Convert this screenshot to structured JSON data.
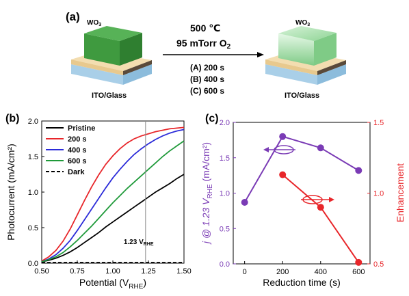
{
  "panel_a": {
    "label": "(a)",
    "left_layer_label": "WO",
    "left_layer_sub": "3",
    "right_layer_label": "WO",
    "right_layer_sub": "3",
    "left_substrate_label": "ITO/Glass",
    "right_substrate_label": "ITO/Glass",
    "temperature": "500 ℃",
    "pressure_prefix": "95 mTorr O",
    "pressure_sub": "2",
    "conditions": [
      "(A) 200 s",
      "(B) 400 s",
      "(C) 600 s"
    ],
    "colors": {
      "left_block": "#3f9a3f",
      "right_block": "#a9e0ae",
      "substrate": "#a9cfe8",
      "ito": "#f2dcae"
    }
  },
  "chart_data": [
    {
      "panel_label": "(b)",
      "type": "line",
      "xlabel_prefix": "Potential (V",
      "xlabel_sub": "RHE",
      "xlabel_suffix": ")",
      "ylabel": "Photocurrent (mA/cm²)",
      "xlim": [
        0.5,
        1.5
      ],
      "ylim": [
        0,
        2.0
      ],
      "xticks": [
        "0.50",
        "0.75",
        "1.00",
        "1.25",
        "1.50"
      ],
      "yticks": [
        "0.0",
        "0.5",
        "1.0",
        "1.5",
        "2.0"
      ],
      "legend_position": "top-left",
      "annotation": {
        "text": "1.23 V",
        "sub": "RHE",
        "x": 1.23
      },
      "series": [
        {
          "name": "Pristine",
          "color": "#000000",
          "dash": "solid",
          "x": [
            0.5,
            0.55,
            0.6,
            0.65,
            0.7,
            0.75,
            0.8,
            0.85,
            0.9,
            0.95,
            1.0,
            1.05,
            1.1,
            1.15,
            1.2,
            1.25,
            1.3,
            1.35,
            1.4,
            1.45,
            1.5
          ],
          "y": [
            0.02,
            0.04,
            0.07,
            0.11,
            0.16,
            0.22,
            0.29,
            0.36,
            0.43,
            0.51,
            0.58,
            0.65,
            0.72,
            0.79,
            0.86,
            0.93,
            1.0,
            1.06,
            1.12,
            1.19,
            1.25
          ]
        },
        {
          "name": "200 s",
          "color": "#e8262a",
          "dash": "solid",
          "x": [
            0.5,
            0.55,
            0.6,
            0.65,
            0.7,
            0.75,
            0.8,
            0.85,
            0.9,
            0.95,
            1.0,
            1.05,
            1.1,
            1.15,
            1.2,
            1.25,
            1.3,
            1.35,
            1.4,
            1.45,
            1.5
          ],
          "y": [
            0.03,
            0.09,
            0.18,
            0.31,
            0.48,
            0.68,
            0.88,
            1.07,
            1.24,
            1.39,
            1.51,
            1.61,
            1.69,
            1.75,
            1.79,
            1.82,
            1.85,
            1.87,
            1.89,
            1.9,
            1.91
          ]
        },
        {
          "name": "400 s",
          "color": "#2b2bd9",
          "dash": "solid",
          "x": [
            0.5,
            0.55,
            0.6,
            0.65,
            0.7,
            0.75,
            0.8,
            0.85,
            0.9,
            0.95,
            1.0,
            1.05,
            1.1,
            1.15,
            1.2,
            1.25,
            1.3,
            1.35,
            1.4,
            1.45,
            1.5
          ],
          "y": [
            0.02,
            0.06,
            0.12,
            0.21,
            0.32,
            0.46,
            0.61,
            0.76,
            0.91,
            1.06,
            1.2,
            1.32,
            1.43,
            1.53,
            1.61,
            1.68,
            1.74,
            1.79,
            1.83,
            1.86,
            1.88
          ]
        },
        {
          "name": "600 s",
          "color": "#1f9a3a",
          "dash": "solid",
          "x": [
            0.5,
            0.55,
            0.6,
            0.65,
            0.7,
            0.75,
            0.8,
            0.85,
            0.9,
            0.95,
            1.0,
            1.05,
            1.1,
            1.15,
            1.2,
            1.25,
            1.3,
            1.35,
            1.4,
            1.45,
            1.5
          ],
          "y": [
            0.02,
            0.05,
            0.09,
            0.15,
            0.23,
            0.32,
            0.42,
            0.52,
            0.63,
            0.74,
            0.85,
            0.95,
            1.05,
            1.14,
            1.23,
            1.32,
            1.41,
            1.5,
            1.58,
            1.65,
            1.72
          ]
        },
        {
          "name": "Dark",
          "color": "#000000",
          "dash": "dashed",
          "x": [
            0.5,
            1.5
          ],
          "y": [
            0.01,
            0.01
          ]
        }
      ]
    },
    {
      "panel_label": "(c)",
      "type": "line",
      "xlabel": "Reduction time (s)",
      "ylabel_left_prefix": "j @ 1.23 V",
      "ylabel_left_sub": "RHE",
      "ylabel_left_suffix": " (mA/cm²)",
      "ylabel_right": "Enhancement",
      "xlim": [
        -60,
        660
      ],
      "ylim_left": [
        0,
        2.0
      ],
      "ylim_right": [
        0.5,
        1.5
      ],
      "xticks": [
        "0",
        "200",
        "400",
        "600"
      ],
      "yticks_left": [
        "0.0",
        "0.5",
        "1.0",
        "1.5",
        "2.0"
      ],
      "yticks_right": [
        "0.5",
        "1.0",
        "1.5"
      ],
      "left_axis_color": "#7a3bb5",
      "right_axis_color": "#e8262a",
      "series": [
        {
          "axis": "left",
          "color": "#7a3bb5",
          "x": [
            0,
            200,
            400,
            600
          ],
          "y": [
            0.87,
            1.8,
            1.64,
            1.32
          ]
        },
        {
          "axis": "right",
          "color": "#e8262a",
          "x": [
            200,
            400,
            600
          ],
          "y": [
            1.13,
            0.9,
            0.51
          ]
        }
      ]
    }
  ]
}
